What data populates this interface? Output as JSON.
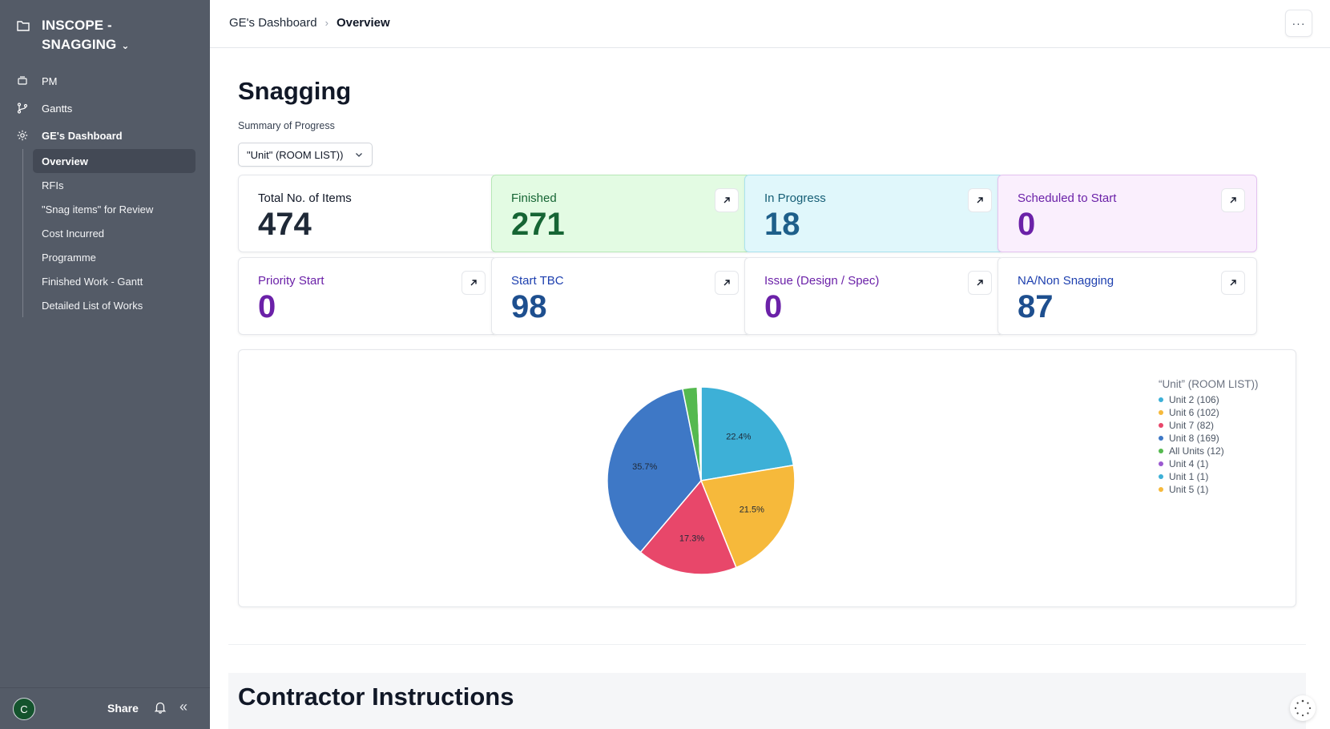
{
  "sidebar": {
    "workspace_title_line1": "INSCOPE -",
    "workspace_title_line2": "SNAGGING",
    "items": [
      {
        "label": "PM",
        "icon": "stack-icon"
      },
      {
        "label": "Gantts",
        "icon": "branch-icon"
      },
      {
        "label": "GE's Dashboard",
        "icon": "gear-icon"
      }
    ],
    "sub_items": [
      {
        "label": "Overview",
        "active": true
      },
      {
        "label": "RFIs"
      },
      {
        "label": "\"Snag items\" for Review"
      },
      {
        "label": "Cost Incurred"
      },
      {
        "label": "Programme"
      },
      {
        "label": "Finished Work - Gantt"
      },
      {
        "label": "Detailed List of Works"
      }
    ],
    "footer": {
      "avatar_initial": "C",
      "share_label": "Share"
    }
  },
  "header": {
    "breadcrumb_parent": "GE's Dashboard",
    "breadcrumb_current": "Overview",
    "more_label": "···"
  },
  "main": {
    "title": "Snagging",
    "subtitle": "Summary of Progress",
    "select_value": "\"Unit\" (ROOM LIST))",
    "cards": [
      {
        "label": "Total No. of Items",
        "value": "474",
        "label_color": "#111827",
        "value_color": "#1f2937",
        "bg": "#ffffff",
        "border": "#e5e7eb",
        "has_open": false
      },
      {
        "label": "Finished",
        "value": "271",
        "label_color": "#166534",
        "value_color": "#166534",
        "bg": "#e3fbe3",
        "border": "#b7e8b7",
        "has_open": true
      },
      {
        "label": "In Progress",
        "value": "18",
        "label_color": "#155e75",
        "value_color": "#1e5f8a",
        "bg": "#e0f7fb",
        "border": "#a9e2ee",
        "has_open": true
      },
      {
        "label": "Scheduled to Start",
        "value": "0",
        "label_color": "#6b21a8",
        "value_color": "#6b21a8",
        "bg": "#faeffd",
        "border": "#e3c2f0",
        "has_open": true
      },
      {
        "label": "Priority Start",
        "value": "0",
        "label_color": "#6b21a8",
        "value_color": "#6b21a8",
        "bg": "#ffffff",
        "border": "#e5e7eb",
        "has_open": true
      },
      {
        "label": "Start TBC",
        "value": "98",
        "label_color": "#1e40af",
        "value_color": "#1e4f8f",
        "bg": "#ffffff",
        "border": "#e5e7eb",
        "has_open": true
      },
      {
        "label": "Issue (Design / Spec)",
        "value": "0",
        "label_color": "#6b21a8",
        "value_color": "#6b21a8",
        "bg": "#ffffff",
        "border": "#e5e7eb",
        "has_open": true
      },
      {
        "label": "NA/Non Snagging",
        "value": "87",
        "label_color": "#1e40af",
        "value_color": "#1e4f8f",
        "bg": "#ffffff",
        "border": "#e5e7eb",
        "has_open": true
      }
    ],
    "section_title": "Contractor Instructions"
  },
  "chart_data": {
    "type": "pie",
    "title": "“Unit” (ROOM LIST))",
    "legend_position": "right",
    "slices": [
      {
        "label": "Unit 2 (106)",
        "value": 106,
        "color": "#3db0d7",
        "pct_label": "22.4%"
      },
      {
        "label": "Unit 6 (102)",
        "value": 102,
        "color": "#f6b93b",
        "pct_label": "21.5%"
      },
      {
        "label": "Unit 7 (82)",
        "value": 82,
        "color": "#e8476a",
        "pct_label": "17.3%"
      },
      {
        "label": "Unit 8 (169)",
        "value": 169,
        "color": "#3e78c6",
        "pct_label": "35.7%"
      },
      {
        "label": "All Units (12)",
        "value": 12,
        "color": "#55b94f",
        "pct_label": ""
      },
      {
        "label": "Unit 4 (1)",
        "value": 1,
        "color": "#9b59d0",
        "pct_label": ""
      },
      {
        "label": "Unit 1 (1)",
        "value": 1,
        "color": "#3db0d7",
        "pct_label": ""
      },
      {
        "label": "Unit 5 (1)",
        "value": 1,
        "color": "#f6b93b",
        "pct_label": ""
      }
    ]
  }
}
